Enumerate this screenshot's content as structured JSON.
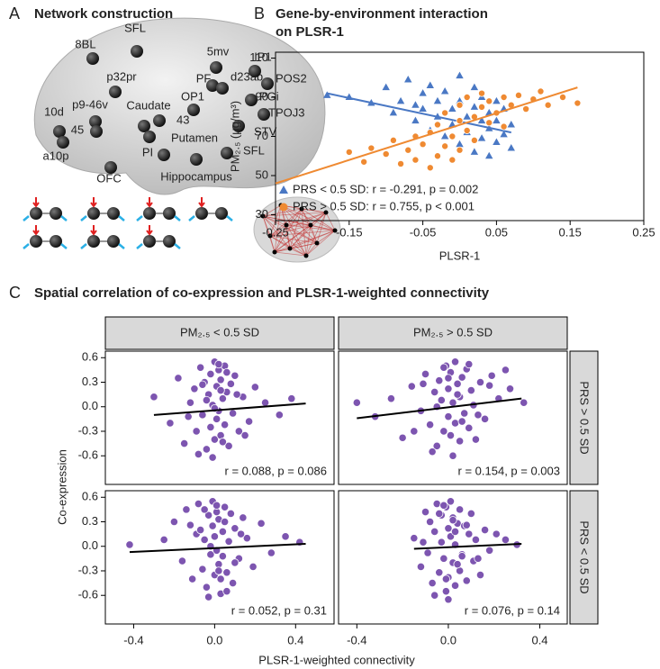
{
  "panel_a": {
    "label": "A",
    "title": "Network construction",
    "regions": [
      "8BL",
      "SFL",
      "p32pr",
      "p9-46v",
      "10d",
      "a10p",
      "45",
      "Caudate",
      "43",
      "OP1",
      "PF",
      "5mv",
      "d23ab",
      "IP1",
      "POS2",
      "PGi",
      "TPOJ3",
      "STV",
      "Putamen",
      "PI",
      "SFL",
      "Hippocampus",
      "OFC"
    ]
  },
  "chart_data": [
    {
      "type": "scatter",
      "label": "B",
      "title": [
        "Gene-by-environment interaction",
        "on PLSR-1"
      ],
      "xlabel": "PLSR-1",
      "ylabel": "PM₂.₅ (μg/m³)",
      "xlim": [
        -0.25,
        0.25
      ],
      "xticks": [
        -0.25,
        -0.15,
        -0.05,
        0.05,
        0.15,
        0.25
      ],
      "ylim": [
        27,
        113
      ],
      "yticks": [
        30,
        50,
        70,
        90,
        110
      ],
      "legend": "bottom-left",
      "series": [
        {
          "name": "PRS < 0.5 SD: r = -0.291, p = 0.002",
          "color": "#4a78c4",
          "marker": "triangle",
          "x": [
            -0.18,
            -0.15,
            -0.12,
            -0.1,
            -0.09,
            -0.08,
            -0.07,
            -0.06,
            -0.05,
            -0.05,
            -0.04,
            -0.04,
            -0.03,
            -0.03,
            -0.02,
            -0.02,
            -0.01,
            -0.01,
            0.0,
            0.0,
            0.0,
            0.01,
            0.01,
            0.02,
            0.02,
            0.02,
            0.03,
            0.03,
            0.03,
            0.04,
            0.04,
            0.04,
            0.05,
            0.05,
            0.05,
            0.06,
            0.06,
            0.07,
            0.07,
            -0.06
          ],
          "values": [
            91,
            90,
            87,
            95,
            82,
            88,
            99,
            78,
            92,
            84,
            73,
            96,
            88,
            80,
            70,
            93,
            84,
            76,
            101,
            88,
            66,
            80,
            72,
            95,
            85,
            62,
            78,
            69,
            90,
            82,
            60,
            74,
            88,
            67,
            78,
            71,
            84,
            64,
            76,
            86
          ],
          "fit": {
            "x": [
              -0.18,
              0.07
            ],
            "values": [
              92,
              72
            ]
          }
        },
        {
          "name": "PRS > 0.5 SD: r = 0.755, p < 0.001",
          "color": "#ef8a32",
          "marker": "circle",
          "x": [
            -0.15,
            -0.13,
            -0.12,
            -0.1,
            -0.09,
            -0.08,
            -0.07,
            -0.06,
            -0.06,
            -0.05,
            -0.04,
            -0.04,
            -0.03,
            -0.03,
            -0.02,
            -0.02,
            -0.01,
            -0.01,
            0.0,
            0.0,
            0.0,
            0.01,
            0.01,
            0.02,
            0.02,
            0.03,
            0.03,
            0.04,
            0.04,
            0.05,
            0.06,
            0.06,
            0.07,
            0.08,
            0.09,
            0.1,
            0.11,
            0.12,
            0.14,
            0.16
          ],
          "values": [
            62,
            57,
            64,
            61,
            68,
            56,
            63,
            70,
            58,
            66,
            54,
            72,
            60,
            76,
            65,
            82,
            58,
            70,
            78,
            63,
            86,
            73,
            90,
            80,
            68,
            85,
            92,
            77,
            88,
            82,
            90,
            75,
            86,
            91,
            84,
            89,
            93,
            86,
            90,
            87
          ],
          "fit": {
            "x": [
              -0.25,
              0.16
            ],
            "values": [
              46,
              95
            ]
          }
        }
      ]
    },
    {
      "type": "scatter",
      "label": "C",
      "title": "Spatial correlation of co-expression and PLSR-1-weighted connectivity",
      "xlabel": "PLSR-1-weighted connectivity",
      "ylabel": "Co-expression",
      "columns": [
        "PM₂.₅ < 0.5 SD",
        "PM₂.₅ > 0.5 SD"
      ],
      "rows": [
        "PRS > 0.5 SD",
        "PRS < 0.5 SD"
      ],
      "color": "#7d55b0",
      "ylim": [
        -0.95,
        0.68
      ],
      "yticks": [
        0.6,
        0.3,
        {
          "value": 0,
          "label": "0.0"
        },
        -0.3,
        -0.6
      ],
      "column_scales": [
        {
          "xlim": [
            -0.54,
            0.59
          ],
          "xticks": [
            -0.4,
            {
              "value": 0,
              "label": "0.0"
            },
            0.4
          ]
        },
        {
          "xlim": [
            -0.48,
            0.52
          ],
          "xticks": [
            -0.4,
            {
              "value": 0,
              "label": "0.0"
            },
            0.4
          ]
        }
      ],
      "facets": [
        {
          "annotation": "r = 0.088, p = 0.086",
          "x": [
            -0.3,
            -0.22,
            -0.18,
            -0.15,
            -0.12,
            -0.1,
            -0.09,
            -0.07,
            -0.06,
            -0.05,
            -0.04,
            -0.03,
            -0.02,
            -0.02,
            -0.01,
            0.0,
            0.0,
            0.01,
            0.01,
            0.02,
            0.02,
            0.03,
            0.03,
            0.04,
            0.05,
            0.05,
            0.06,
            0.07,
            0.08,
            0.09,
            0.1,
            0.12,
            0.14,
            0.17,
            0.2,
            0.25,
            0.32,
            -0.08,
            -0.04,
            0.0,
            0.03,
            0.06,
            -0.01,
            0.02,
            -0.13,
            0.11,
            -0.06,
            0.04,
            0.15,
            0.38
          ],
          "values": [
            0.12,
            -0.2,
            0.35,
            -0.45,
            0.05,
            0.22,
            -0.3,
            0.48,
            -0.1,
            0.3,
            -0.52,
            0.15,
            0.4,
            -0.25,
            0.02,
            0.55,
            -0.4,
            0.25,
            -0.15,
            0.45,
            -0.05,
            0.33,
            -0.35,
            0.1,
            0.5,
            -0.22,
            0.18,
            -0.48,
            0.28,
            -0.08,
            0.38,
            -0.3,
            0.12,
            -0.18,
            0.24,
            0.05,
            -0.1,
            -0.58,
            0.08,
            -0.02,
            0.2,
            0.42,
            -0.62,
            0.52,
            -0.12,
            0.15,
            0.27,
            -0.43,
            -0.35,
            0.1
          ],
          "fit": {
            "x": [
              -0.3,
              0.45
            ],
            "values": [
              -0.1,
              0.04
            ]
          }
        },
        {
          "annotation": "r = 0.154, p = 0.003",
          "x": [
            -0.4,
            -0.32,
            -0.25,
            -0.2,
            -0.16,
            -0.12,
            -0.1,
            -0.08,
            -0.06,
            -0.05,
            -0.04,
            -0.03,
            -0.02,
            -0.01,
            0.0,
            0.0,
            0.01,
            0.01,
            0.02,
            0.03,
            0.03,
            0.04,
            0.05,
            0.05,
            0.06,
            0.07,
            0.08,
            0.09,
            0.1,
            0.11,
            0.12,
            0.14,
            0.16,
            0.19,
            0.22,
            0.27,
            0.33,
            -0.07,
            -0.02,
            0.02,
            0.04,
            -0.11,
            0.06,
            0.0,
            -0.15,
            0.09,
            -0.05,
            0.13,
            0.18,
            0.25
          ],
          "values": [
            0.05,
            -0.12,
            0.1,
            -0.38,
            0.25,
            -0.05,
            0.4,
            -0.22,
            0.18,
            -0.48,
            0.32,
            0.08,
            -0.3,
            0.5,
            -0.12,
            0.22,
            0.42,
            -0.35,
            0.05,
            0.55,
            -0.2,
            0.28,
            -0.42,
            0.12,
            0.36,
            -0.08,
            0.46,
            -0.26,
            0.2,
            0.02,
            -0.4,
            0.3,
            -0.15,
            0.38,
            0.1,
            0.22,
            0.05,
            -0.55,
            0.48,
            -0.6,
            0.15,
            0.28,
            -0.18,
            0.35,
            -0.3,
            0.52,
            0.0,
            -0.1,
            0.26,
            0.45
          ],
          "fit": {
            "x": [
              -0.4,
              0.32
            ],
            "values": [
              -0.14,
              0.1
            ]
          }
        },
        {
          "annotation": "r = 0.052, p = 0.31",
          "x": [
            -0.42,
            -0.2,
            -0.16,
            -0.14,
            -0.11,
            -0.09,
            -0.08,
            -0.06,
            -0.05,
            -0.04,
            -0.03,
            -0.02,
            -0.01,
            -0.01,
            0.0,
            0.0,
            0.01,
            0.01,
            0.02,
            0.02,
            0.03,
            0.04,
            0.04,
            0.05,
            0.06,
            0.07,
            0.08,
            0.09,
            0.1,
            0.12,
            0.14,
            0.16,
            0.19,
            0.23,
            0.28,
            0.35,
            0.42,
            -0.07,
            -0.03,
            0.01,
            0.03,
            0.05,
            -0.02,
            0.02,
            -0.12,
            0.1,
            -0.05,
            0.06,
            0.13,
            -0.25
          ],
          "values": [
            0.02,
            0.3,
            -0.18,
            0.45,
            -0.4,
            0.15,
            0.52,
            -0.28,
            0.08,
            -0.5,
            0.38,
            -0.1,
            0.25,
            0.55,
            -0.35,
            0.12,
            -0.05,
            0.42,
            -0.22,
            0.33,
            -0.58,
            0.18,
            -0.12,
            0.48,
            -0.32,
            0.06,
            0.4,
            -0.45,
            0.22,
            -0.15,
            0.35,
            0.1,
            -0.25,
            0.28,
            -0.08,
            0.12,
            0.05,
            0.2,
            -0.62,
            0.5,
            -0.4,
            0.3,
            0.0,
            -0.3,
            0.26,
            -0.2,
            0.45,
            -0.55,
            0.15,
            0.08
          ],
          "fit": {
            "x": [
              -0.42,
              0.45
            ],
            "values": [
              -0.07,
              0.03
            ]
          }
        },
        {
          "annotation": "r = 0.076, p = 0.14",
          "x": [
            -0.15,
            -0.12,
            -0.1,
            -0.09,
            -0.08,
            -0.07,
            -0.06,
            -0.05,
            -0.04,
            -0.03,
            -0.03,
            -0.02,
            -0.01,
            -0.01,
            0.0,
            0.0,
            0.01,
            0.01,
            0.02,
            0.02,
            0.03,
            0.03,
            0.04,
            0.05,
            0.05,
            0.06,
            0.07,
            0.08,
            0.09,
            0.1,
            0.11,
            0.12,
            0.14,
            0.16,
            0.18,
            0.21,
            0.25,
            0.3,
            -0.06,
            -0.02,
            0.0,
            0.02,
            0.04,
            -0.04,
            0.06,
            -0.11,
            0.08,
            -0.01,
            0.13,
            0.03
          ],
          "values": [
            0.1,
            -0.25,
            0.42,
            -0.08,
            0.3,
            -0.45,
            0.18,
            0.52,
            -0.32,
            0.05,
            0.38,
            -0.15,
            0.48,
            -0.55,
            0.22,
            -0.38,
            0.12,
            0.55,
            -0.2,
            0.35,
            -0.48,
            0.02,
            0.28,
            -0.3,
            0.45,
            -0.1,
            0.25,
            -0.42,
            0.15,
            0.4,
            -0.18,
            0.08,
            -0.35,
            0.2,
            -0.05,
            0.15,
            0.08,
            0.02,
            -0.6,
            0.5,
            -0.65,
            0.32,
            -0.22,
            0.4,
            -0.12,
            0.05,
            0.26,
            -0.4,
            -0.15,
            0.18
          ],
          "fit": {
            "x": [
              -0.15,
              0.32
            ],
            "values": [
              -0.03,
              0.03
            ]
          }
        }
      ]
    }
  ]
}
